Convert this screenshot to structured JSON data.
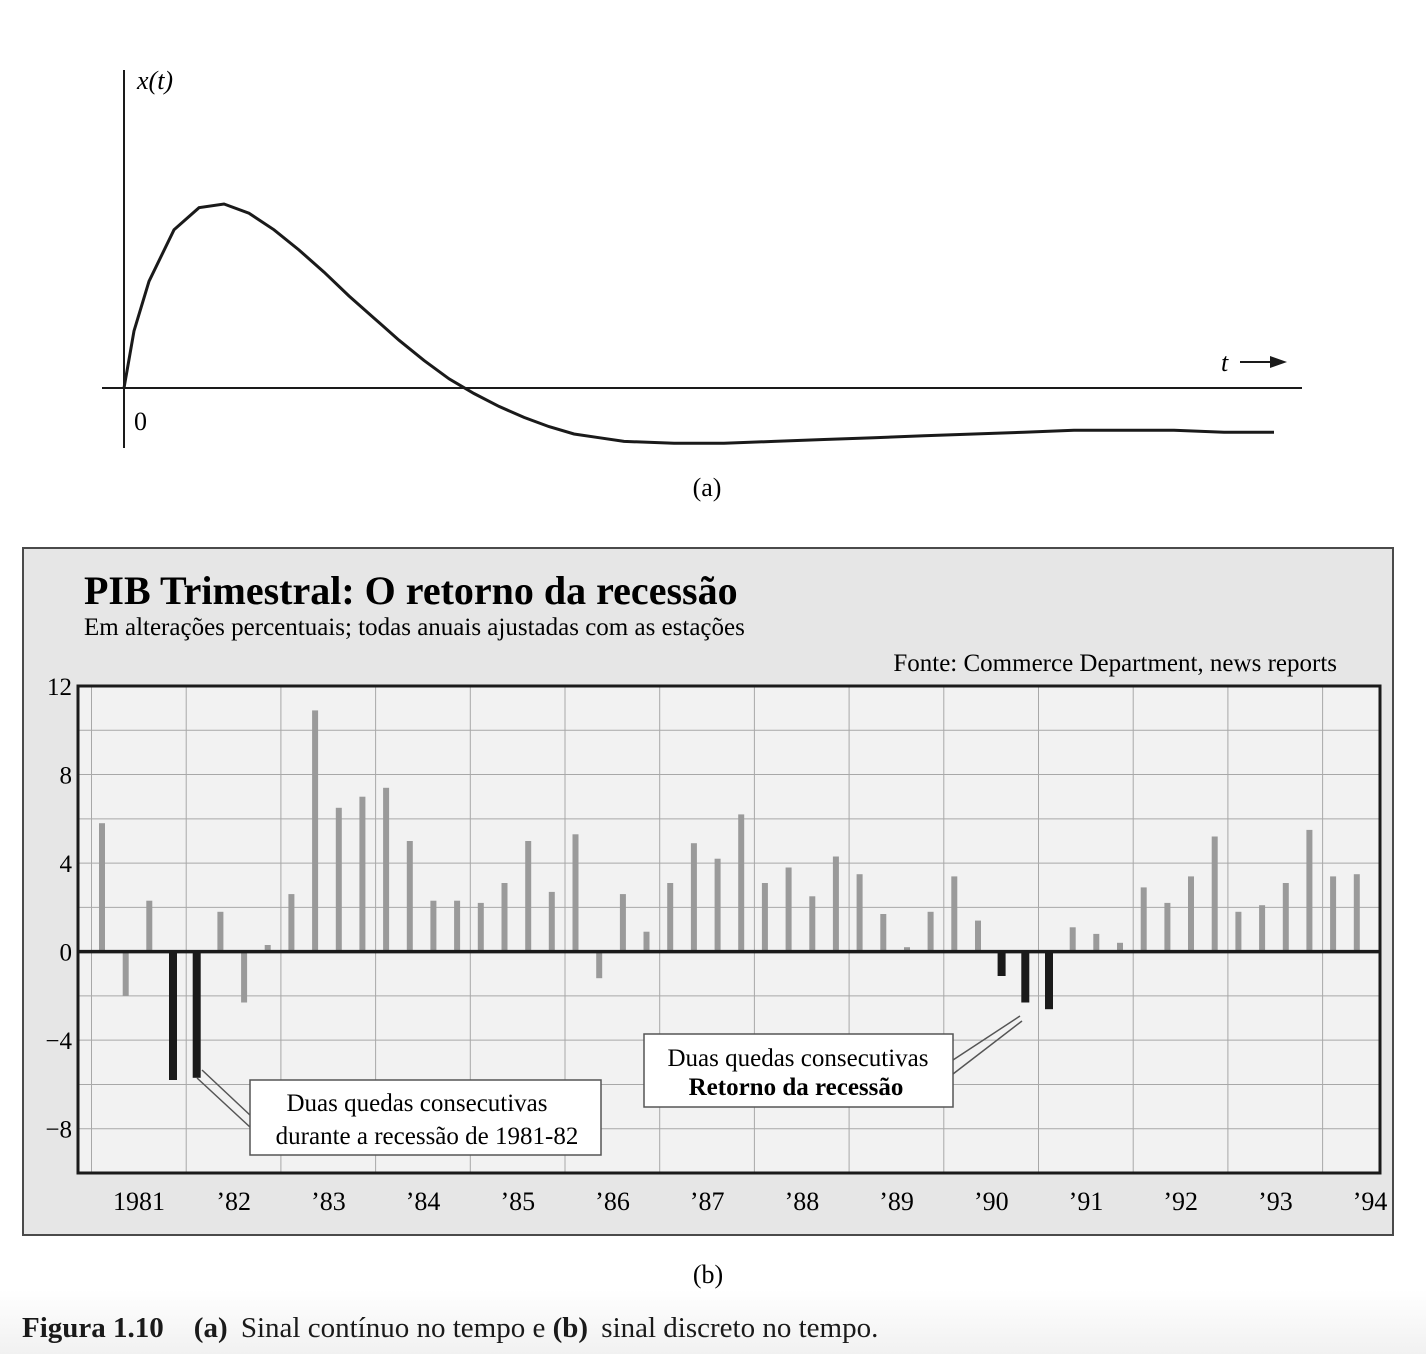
{
  "chart_data": [
    {
      "type": "line",
      "panel_label": "(a)",
      "ylabel": "x(t)",
      "xlabel": "t",
      "origin_label": "0",
      "ticks": false,
      "series": [
        {
          "x": [
            0,
            0.1,
            0.25,
            0.5,
            0.75,
            1.0,
            1.25,
            1.5,
            1.75,
            2.0,
            2.25,
            2.5,
            2.75,
            3.0,
            3.25,
            3.5,
            3.75,
            4.0,
            4.25,
            4.5,
            4.75,
            5.0,
            5.5,
            6.0,
            6.5,
            7.0,
            7.5,
            8.0,
            8.5,
            9.0,
            9.5,
            10.0,
            10.5,
            11.0,
            11.5
          ],
          "y": [
            0,
            0.31,
            0.58,
            0.86,
            0.98,
            1.0,
            0.95,
            0.86,
            0.75,
            0.63,
            0.5,
            0.38,
            0.26,
            0.15,
            0.05,
            -0.03,
            -0.1,
            -0.16,
            -0.21,
            -0.25,
            -0.27,
            -0.29,
            -0.3,
            -0.3,
            -0.29,
            -0.28,
            -0.27,
            -0.26,
            -0.25,
            -0.24,
            -0.23,
            -0.23,
            -0.23,
            -0.24,
            -0.24
          ]
        }
      ]
    },
    {
      "type": "bar",
      "panel_label": "(b)",
      "title": "PIB Trimestral: O retorno da recessão",
      "subtitle": "Em alterações percentuais; todas anuais ajustadas com as estações",
      "source": "Fonte: Commerce Department, news reports",
      "ylim": [
        -10,
        12
      ],
      "yticks": [
        12,
        8,
        4,
        0,
        -4,
        -8
      ],
      "ytick_labels": [
        "12",
        "8",
        "4",
        "0",
        "−4",
        "−8"
      ],
      "year_labels": [
        "1981",
        "’82",
        "’83",
        "’84",
        "’85",
        "’86",
        "’87",
        "’88",
        "’89",
        "’90",
        "’91",
        "’92",
        "’93",
        "’94"
      ],
      "grid": true,
      "series": [
        {
          "values": [
            5.8,
            -2.0,
            2.3,
            -5.8,
            -5.7,
            1.8,
            -2.3,
            0.3,
            2.6,
            10.9,
            6.5,
            7.0,
            7.4,
            5.0,
            2.3,
            2.3,
            2.2,
            3.1,
            5.0,
            2.7,
            5.3,
            -1.2,
            2.6,
            0.9,
            3.1,
            4.9,
            4.2,
            6.2,
            3.1,
            3.8,
            2.5,
            4.3,
            3.5,
            1.7,
            0.2,
            1.8,
            3.4,
            1.4,
            -1.1,
            -2.3,
            -2.6,
            1.1,
            0.8,
            0.4,
            2.9,
            2.2,
            3.4,
            5.2,
            1.8,
            2.1,
            3.1,
            5.5,
            3.4,
            3.5
          ],
          "highlighted_indices": [
            3,
            4,
            38,
            39,
            40
          ],
          "highlight_color": "#1a1a1a",
          "color": "#9a9a9a"
        }
      ],
      "annotations": [
        {
          "lines": [
            "Duas quedas consecutivas",
            "durante a recessão de 1981-82"
          ]
        },
        {
          "lines": [
            "Duas quedas consecutivas",
            "Retorno da recessão"
          ]
        }
      ]
    }
  ],
  "figure_caption": {
    "number": "Figura 1.10",
    "part_a_label": "(a)",
    "part_a_text": "Sinal contínuo no tempo e",
    "part_b_label": "(b)",
    "part_b_text": "sinal discreto no tempo."
  },
  "colors": {
    "panel_bg": "#e6e6e6",
    "gray_bar": "#9a9a9a",
    "dark_bar": "#1a1a1a",
    "grid": "#a8a8a8"
  }
}
